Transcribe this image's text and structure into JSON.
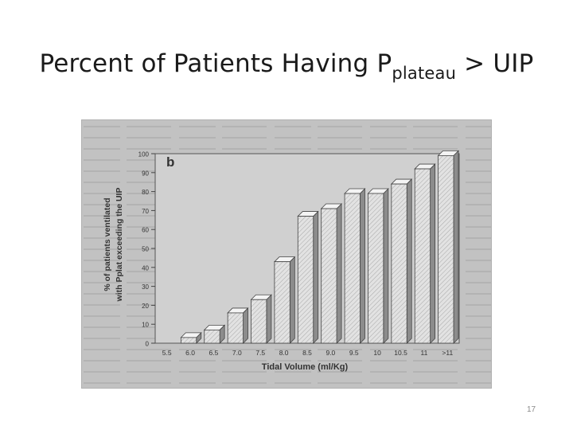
{
  "slide": {
    "title_main": "Percent of Patients Having P",
    "title_sub": "plateau",
    "title_tail": " > UIP",
    "page_number": "17"
  },
  "chart_data": {
    "type": "bar",
    "panel_label": "b",
    "categories": [
      "5.5",
      "6.0",
      "6.5",
      "7.0",
      "7.5",
      "8.0",
      "8.5",
      "9.0",
      "9.5",
      "10",
      "10.5",
      "11",
      ">11"
    ],
    "values": [
      0,
      3,
      7,
      16,
      23,
      43,
      67,
      71,
      79,
      79,
      84,
      92,
      99
    ],
    "xlabel": "Tidal   Volume   (ml/Kg)",
    "ylabel_line1": "% of patients ventilated",
    "ylabel_line2": "with Pplat exceeding the UIP",
    "ylim": [
      0,
      100
    ],
    "yticks": [
      "0",
      "10",
      "20",
      "30",
      "40",
      "50",
      "60",
      "70",
      "80",
      "90",
      "100"
    ],
    "colors": {
      "bar_front": "#e2e2e2",
      "bar_side": "#8c8c8c",
      "bar_top": "#f4f4f4",
      "plot_bg": "#d0d0d0",
      "figure_bg": "#c2c2c2"
    }
  }
}
